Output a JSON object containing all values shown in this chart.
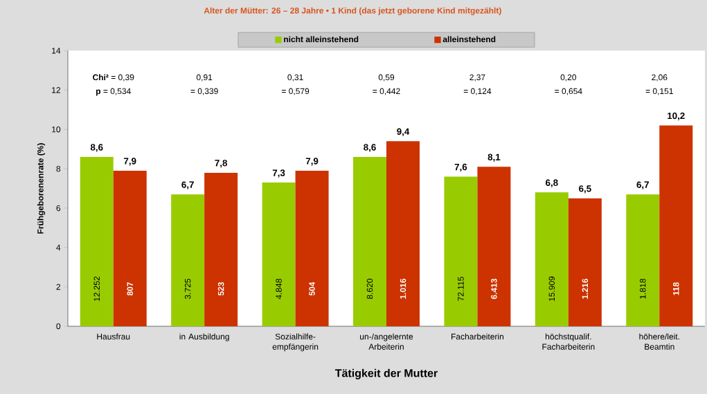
{
  "chart_data": {
    "type": "bar",
    "title": "Alter der Mütter:  26 – 28 Jahre  •  1 Kind (das jetzt geborene Kind mitgezählt)",
    "xlabel": "Tätigkeit der Mutter",
    "ylabel": "Frühgeborenenrate (%)",
    "categories": [
      "Hausfrau",
      "in Ausbildung",
      "Sozialhilfe-empfängerin",
      "un-/angelernte Arbeiterin",
      "Facharbeiterin",
      "höchstqualif. Facharbeiterin",
      "höhere/leit. Beamtin"
    ],
    "series": [
      {
        "name": "nicht alleinstehend",
        "color": "#99cc00",
        "values": [
          8.6,
          6.7,
          7.3,
          8.6,
          7.6,
          6.8,
          6.7
        ],
        "value_labels": [
          "8,6",
          "6,7",
          "7,3",
          "8,6",
          "7,6",
          "6,8",
          "6,7"
        ]
      },
      {
        "name": "alleinstehend",
        "color": "#cc3300",
        "values": [
          7.9,
          7.8,
          7.9,
          9.4,
          8.1,
          6.5,
          10.2
        ],
        "value_labels": [
          "7,9",
          "7,8",
          "7,9",
          "9,4",
          "8,1",
          "6,5",
          "10,2"
        ]
      }
    ],
    "ylim": [
      0,
      14
    ],
    "yticks": [
      0,
      2,
      4,
      6,
      8,
      10,
      12,
      14
    ],
    "grid": false,
    "legend": "top",
    "annotations": [
      "**Chi²** = 0,39",
      "0,91",
      "0,31",
      "0,59",
      "2,37",
      "0,20",
      "2,06",
      "**p** = 0,534",
      "= 0,339",
      "= 0,579",
      "= 0,442",
      "= 0,124",
      "= 0,654",
      "= 0,151",
      {
        "text": "12.252",
        "x": "Hausfrau",
        "y": 1.9
      },
      {
        "text": "807",
        "x": "Hausfrau",
        "y": 1.9
      },
      {
        "text": "3.725",
        "x": "in Ausbildung",
        "y": 1.9
      },
      {
        "text": "523",
        "x": "in Ausbildung",
        "y": 1.9
      },
      {
        "text": "4.848",
        "x": "Sozialhilfe-empfängerin",
        "y": 1.9
      },
      {
        "text": "504",
        "x": "Sozialhilfe-empfängerin",
        "y": 1.9
      },
      {
        "text": "8.620",
        "x": "un-/angelernte Arbeiterin",
        "y": 1.9
      },
      {
        "text": "1.016",
        "x": "un-/angelernte Arbeiterin",
        "y": 1.9
      },
      {
        "text": "72.115",
        "x": "Facharbeiterin",
        "y": 1.9
      },
      {
        "text": "6.413",
        "x": "Facharbeiterin",
        "y": 1.9
      },
      {
        "text": "15.909",
        "x": "höchstqualif. Facharbeiterin",
        "y": 1.9
      },
      {
        "text": "1.216",
        "x": "höchstqualif. Facharbeiterin",
        "y": 1.9
      },
      {
        "text": "1.818",
        "x": "höhere/leit. Beamtin",
        "y": 1.9
      },
      {
        "text": "118",
        "x": "höhere/leit. Beamtin",
        "y": 1.9
      }
    ]
  }
}
